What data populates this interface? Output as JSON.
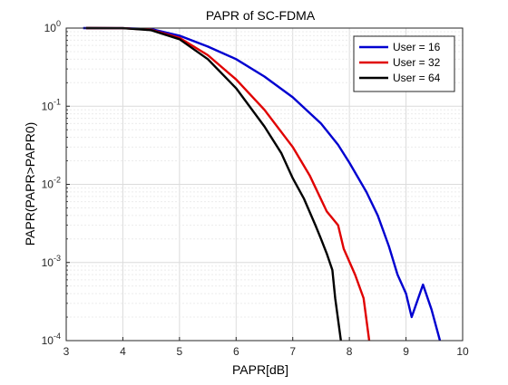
{
  "chart_data": {
    "type": "line",
    "title": "PAPR of SC-FDMA",
    "xlabel": "PAPR[dB]",
    "ylabel": "PAPR(PAPR>PAPR0)",
    "xlim": [
      3,
      10
    ],
    "ylim": [
      0.0001,
      1
    ],
    "yscale": "log",
    "x_ticks": [
      "3",
      "4",
      "5",
      "6",
      "7",
      "8",
      "9",
      "10"
    ],
    "y_ticks": [
      {
        "base": "10",
        "exp": "0"
      },
      {
        "base": "10",
        "exp": "-1"
      },
      {
        "base": "10",
        "exp": "-2"
      },
      {
        "base": "10",
        "exp": "-3"
      },
      {
        "base": "10",
        "exp": "-4"
      }
    ],
    "grid": true,
    "legend_position": "top-right",
    "series": [
      {
        "name": "User = 16",
        "color": "#0000d0",
        "points": [
          [
            3.3,
            1
          ],
          [
            4.0,
            0.998
          ],
          [
            4.5,
            0.97
          ],
          [
            5.0,
            0.8
          ],
          [
            5.5,
            0.58
          ],
          [
            6.0,
            0.4
          ],
          [
            6.5,
            0.24
          ],
          [
            7.0,
            0.13
          ],
          [
            7.5,
            0.06
          ],
          [
            7.8,
            0.032
          ],
          [
            8.0,
            0.019
          ],
          [
            8.3,
            0.008
          ],
          [
            8.5,
            0.004
          ],
          [
            8.7,
            0.0016
          ],
          [
            8.85,
            0.0007
          ],
          [
            9.0,
            0.0004
          ],
          [
            9.1,
            0.0002
          ],
          [
            9.3,
            0.00052
          ],
          [
            9.45,
            0.00025
          ],
          [
            9.6,
            0.0001
          ]
        ]
      },
      {
        "name": "User = 32",
        "color": "#e00000",
        "points": [
          [
            3.35,
            1
          ],
          [
            4.0,
            0.997
          ],
          [
            4.5,
            0.95
          ],
          [
            5.0,
            0.75
          ],
          [
            5.5,
            0.45
          ],
          [
            6.0,
            0.22
          ],
          [
            6.5,
            0.09
          ],
          [
            7.0,
            0.03
          ],
          [
            7.3,
            0.013
          ],
          [
            7.6,
            0.0045
          ],
          [
            7.8,
            0.003
          ],
          [
            7.9,
            0.0015
          ],
          [
            8.1,
            0.0007
          ],
          [
            8.25,
            0.00035
          ],
          [
            8.35,
            0.0001
          ]
        ]
      },
      {
        "name": "User = 64",
        "color": "#000000",
        "points": [
          [
            3.35,
            1
          ],
          [
            4.0,
            0.997
          ],
          [
            4.5,
            0.94
          ],
          [
            5.0,
            0.72
          ],
          [
            5.5,
            0.4
          ],
          [
            6.0,
            0.17
          ],
          [
            6.5,
            0.055
          ],
          [
            6.8,
            0.025
          ],
          [
            7.0,
            0.012
          ],
          [
            7.2,
            0.0065
          ],
          [
            7.4,
            0.003
          ],
          [
            7.5,
            0.002
          ],
          [
            7.6,
            0.0013
          ],
          [
            7.7,
            0.0008
          ],
          [
            7.75,
            0.00035
          ],
          [
            7.85,
            0.0001
          ]
        ]
      }
    ]
  }
}
